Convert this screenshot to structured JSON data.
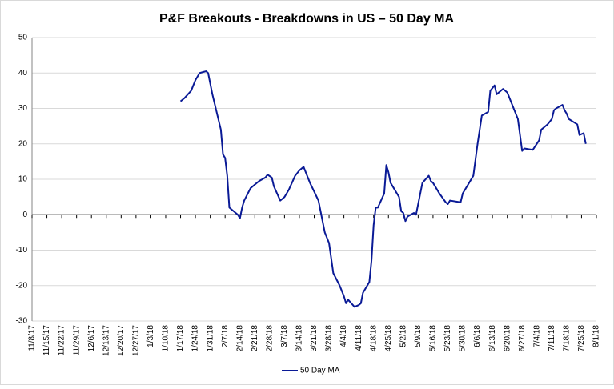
{
  "chart_data": {
    "type": "line",
    "title": "P&F Breakouts - Breakdowns in US – 50 Day MA",
    "x": [
      "1/17/18",
      "1/19/18",
      "1/22/18",
      "1/24/18",
      "1/26/18",
      "1/29/18",
      "1/30/18",
      "2/1/18",
      "2/5/18",
      "2/6/18",
      "2/7/18",
      "2/8/18",
      "2/9/18",
      "2/13/18",
      "2/14/18",
      "2/15/18",
      "2/16/18",
      "2/19/18",
      "2/21/18",
      "2/23/18",
      "2/26/18",
      "2/27/18",
      "3/1/18",
      "3/2/18",
      "3/5/18",
      "3/7/18",
      "3/9/18",
      "3/12/18",
      "3/14/18",
      "3/16/18",
      "3/19/18",
      "3/21/18",
      "3/23/18",
      "3/26/18",
      "3/28/18",
      "3/30/18",
      "4/2/18",
      "4/4/18",
      "4/5/18",
      "4/6/18",
      "4/9/18",
      "4/11/18",
      "4/12/18",
      "4/13/18",
      "4/16/18",
      "4/17/18",
      "4/18/18",
      "4/19/18",
      "4/20/18",
      "4/23/18",
      "4/24/18",
      "4/25/18",
      "4/26/18",
      "4/30/18",
      "5/1/18",
      "5/2/18",
      "5/3/18",
      "5/4/18",
      "5/7/18",
      "5/8/18",
      "5/9/18",
      "5/11/18",
      "5/14/18",
      "5/15/18",
      "5/16/18",
      "5/19/18",
      "5/22/18",
      "5/23/18",
      "5/24/18",
      "5/29/18",
      "5/30/18",
      "6/1/18",
      "6/4/18",
      "6/6/18",
      "6/8/18",
      "6/11/18",
      "6/12/18",
      "6/14/18",
      "6/15/18",
      "6/18/18",
      "6/20/18",
      "6/22/18",
      "6/25/18",
      "6/27/18",
      "6/28/18",
      "7/2/18",
      "7/5/18",
      "7/6/18",
      "7/9/18",
      "7/11/18",
      "7/12/18",
      "7/13/18",
      "7/16/18",
      "7/17/18",
      "7/18/18",
      "7/19/18",
      "7/23/18",
      "7/24/18",
      "7/26/18",
      "7/27/18"
    ],
    "series": [
      {
        "name": "50 Day MA",
        "color": "#0a1a96",
        "values": [
          32,
          33,
          35,
          38,
          40,
          40.5,
          40,
          34,
          24,
          17,
          16,
          11,
          2,
          0,
          -1,
          2,
          4,
          7.5,
          8.5,
          9.5,
          10.5,
          11.3,
          10.5,
          8,
          4,
          5,
          7,
          11,
          12.5,
          13.5,
          9,
          6.5,
          4,
          -5,
          -8,
          -16.5,
          -20,
          -23,
          -25,
          -24,
          -26,
          -25.5,
          -25,
          -22,
          -19,
          -13,
          -3,
          2,
          2,
          6,
          14,
          12,
          9,
          5,
          1,
          0.5,
          -1.8,
          -0.5,
          0.5,
          0,
          3,
          9,
          11,
          9.5,
          9,
          6,
          3.5,
          3,
          4,
          3.5,
          6,
          8,
          11,
          20,
          28,
          29,
          35,
          36.5,
          34,
          35.5,
          34.5,
          31.5,
          27,
          18,
          18.7,
          18.3,
          21,
          24,
          25.5,
          27,
          29.5,
          30,
          31,
          29.5,
          28.5,
          27,
          25.5,
          22.5,
          23,
          20
        ]
      }
    ],
    "xlim": [
      "11/8/17",
      "8/1/18"
    ],
    "xticks": [
      "11/8/17",
      "11/15/17",
      "11/22/17",
      "11/29/17",
      "12/6/17",
      "12/13/17",
      "12/20/17",
      "12/27/17",
      "1/3/18",
      "1/10/18",
      "1/17/18",
      "1/24/18",
      "1/31/18",
      "2/7/18",
      "2/14/18",
      "2/21/18",
      "2/28/18",
      "3/7/18",
      "3/14/18",
      "3/21/18",
      "3/28/18",
      "4/4/18",
      "4/11/18",
      "4/18/18",
      "4/25/18",
      "5/2/18",
      "5/9/18",
      "5/16/18",
      "5/23/18",
      "5/30/18",
      "6/6/18",
      "6/13/18",
      "6/20/18",
      "6/27/18",
      "7/4/18",
      "7/11/18",
      "7/18/18",
      "7/25/18",
      "8/1/18"
    ],
    "ylim": [
      -30,
      50
    ],
    "yticks": [
      -30,
      -20,
      -10,
      0,
      10,
      20,
      30,
      40,
      50
    ],
    "grid": true,
    "legend": "bottom"
  }
}
